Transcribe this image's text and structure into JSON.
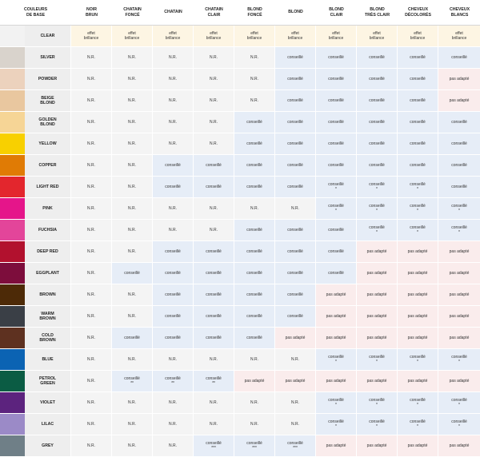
{
  "header": {
    "base_colors_label": "COULEURS\nDE BASE",
    "columns": [
      "NOIR\nBRUN",
      "CHATAIN\nFONCÉ",
      "CHATAIN",
      "CHATAIN\nCLAIR",
      "BLOND\nFONCÉ",
      "BLOND",
      "BLOND\nCLAIR",
      "BLOND\nTRÈS CLAIR",
      "CHEVEUX\nDÉCOLORÉS",
      "CHEVEUX\nBLANCS"
    ]
  },
  "rows": [
    {
      "name": "CLEAR",
      "swatch": "#f2f2f2",
      "cells": [
        "effet\nbrillance",
        "effet\nbrillance",
        "effet\nbrillance",
        "effet\nbrillance",
        "effet\nbrillance",
        "effet\nbrillance",
        "effet\nbrillance",
        "effet\nbrillance",
        "effet\nbrillance",
        "effet\nbrillance"
      ]
    },
    {
      "name": "SILVER",
      "swatch": "#d9d3cc",
      "cells": [
        "N.R.",
        "N.R.",
        "N.R.",
        "N.R.",
        "N.R.",
        "conseillé",
        "conseillé",
        "conseillé",
        "conseillé",
        "conseillé"
      ]
    },
    {
      "name": "POWDER",
      "swatch": "#ecd2bd",
      "cells": [
        "N.R.",
        "N.R.",
        "N.R.",
        "N.R.",
        "N.R.",
        "conseillé",
        "conseillé",
        "conseillé",
        "conseillé",
        "pas adapté"
      ]
    },
    {
      "name": "BEIGE\nBLOND",
      "swatch": "#e9c79f",
      "cells": [
        "N.R.",
        "N.R.",
        "N.R.",
        "N.R.",
        "N.R.",
        "conseillé",
        "conseillé",
        "conseillé",
        "conseillé",
        "pas adapté"
      ]
    },
    {
      "name": "GOLDEN\nBLOND",
      "swatch": "#f6d596",
      "cells": [
        "N.R.",
        "N.R.",
        "N.R.",
        "N.R.",
        "conseillé",
        "conseillé",
        "conseillé",
        "conseillé",
        "conseillé",
        "conseillé"
      ]
    },
    {
      "name": "YELLOW",
      "swatch": "#f8d000",
      "cells": [
        "N.R.",
        "N.R.",
        "N.R.",
        "N.R.",
        "conseillé",
        "conseillé",
        "conseillé",
        "conseillé",
        "conseillé",
        "conseillé"
      ]
    },
    {
      "name": "COPPER",
      "swatch": "#e07b05",
      "cells": [
        "N.R.",
        "N.R.",
        "conseillé",
        "conseillé",
        "conseillé",
        "conseillé",
        "conseillé",
        "conseillé",
        "conseillé",
        "conseillé"
      ]
    },
    {
      "name": "LIGHT RED",
      "swatch": "#e3262d",
      "cells": [
        "N.R.",
        "N.R.",
        "conseillé",
        "conseillé",
        "conseillé",
        "conseillé",
        "conseillé\n*",
        "conseillé\n*",
        "conseillé\n*",
        "conseillé"
      ]
    },
    {
      "name": "PINK",
      "swatch": "#e5158a",
      "cells": [
        "N.R.",
        "N.R.",
        "N.R.",
        "N.R.",
        "N.R.",
        "N.R.",
        "conseillé\n*",
        "conseillé\n*",
        "conseillé\n*",
        "conseillé\n*"
      ]
    },
    {
      "name": "FUCHSIA",
      "swatch": "#e3459a",
      "cells": [
        "N.R.",
        "N.R.",
        "N.R.",
        "N.R.",
        "conseillé",
        "conseillé",
        "conseillé",
        "conseillé\n*",
        "conseillé\n*",
        "conseillé\n*"
      ]
    },
    {
      "name": "DEEP RED",
      "swatch": "#b2112e",
      "cells": [
        "N.R.",
        "N.R.",
        "conseillé",
        "conseillé",
        "conseillé",
        "conseillé",
        "conseillé",
        "pas adapté",
        "pas adapté",
        "pas adapté"
      ]
    },
    {
      "name": "EGGPLANT",
      "swatch": "#7d0d3c",
      "cells": [
        "N.R.",
        "conseillé",
        "conseillé",
        "conseillé",
        "conseillé",
        "conseillé",
        "conseillé",
        "pas adapté",
        "pas adapté",
        "pas adapté"
      ]
    },
    {
      "name": "BROWN",
      "swatch": "#4d2a07",
      "cells": [
        "N.R.",
        "N.R.",
        "conseillé",
        "conseillé",
        "conseillé",
        "conseillé",
        "pas adapté",
        "pas adapté",
        "pas adapté",
        "pas adapté"
      ]
    },
    {
      "name": "WARM\nBROWN",
      "swatch": "#3a3f46",
      "cells": [
        "N.R.",
        "N.R.",
        "conseillé",
        "conseillé",
        "conseillé",
        "conseillé",
        "pas adapté",
        "pas adapté",
        "pas adapté",
        "pas adapté"
      ]
    },
    {
      "name": "COLD\nBROWN",
      "swatch": "#5e3120",
      "cells": [
        "N.R.",
        "conseillé",
        "conseillé",
        "conseillé",
        "conseillé",
        "pas adapté",
        "pas adapté",
        "pas adapté",
        "pas adapté",
        "pas adapté"
      ]
    },
    {
      "name": "BLUE",
      "swatch": "#0b63b3",
      "cells": [
        "N.R.",
        "N.R.",
        "N.R.",
        "N.R.",
        "N.R.",
        "N.R.",
        "conseillé\n*",
        "conseillé\n*",
        "conseillé\n*",
        "conseillé\n*"
      ]
    },
    {
      "name": "PETROL\nGREEN",
      "swatch": "#0b5c44",
      "cells": [
        "N.R.",
        "conseillé\n**",
        "conseillé\n**",
        "conseillé\n**",
        "pas adapté",
        "pas adapté",
        "pas adapté",
        "pas adapté",
        "pas adapté",
        "pas adapté"
      ]
    },
    {
      "name": "VIOLET",
      "swatch": "#5c237e",
      "cells": [
        "N.R.",
        "N.R.",
        "N.R.",
        "N.R.",
        "N.R.",
        "N.R.",
        "conseillé\n*",
        "conseillé\n*",
        "conseillé\n*",
        "conseillé\n*"
      ]
    },
    {
      "name": "LILAC",
      "swatch": "#9b8ac7",
      "cells": [
        "N.R.",
        "N.R.",
        "N.R.",
        "N.R.",
        "N.R.",
        "N.R.",
        "conseillé\n*",
        "conseillé\n*",
        "conseillé\n*",
        "conseillé\n*"
      ]
    },
    {
      "name": "GREY",
      "swatch": "#6f7f87",
      "cells": [
        "N.R.",
        "N.R.",
        "N.R.",
        "conseillé\n***",
        "conseillé\n***",
        "conseillé\n***",
        "pas adapté",
        "pas adapté",
        "pas adapté",
        "pas adapté"
      ]
    }
  ]
}
